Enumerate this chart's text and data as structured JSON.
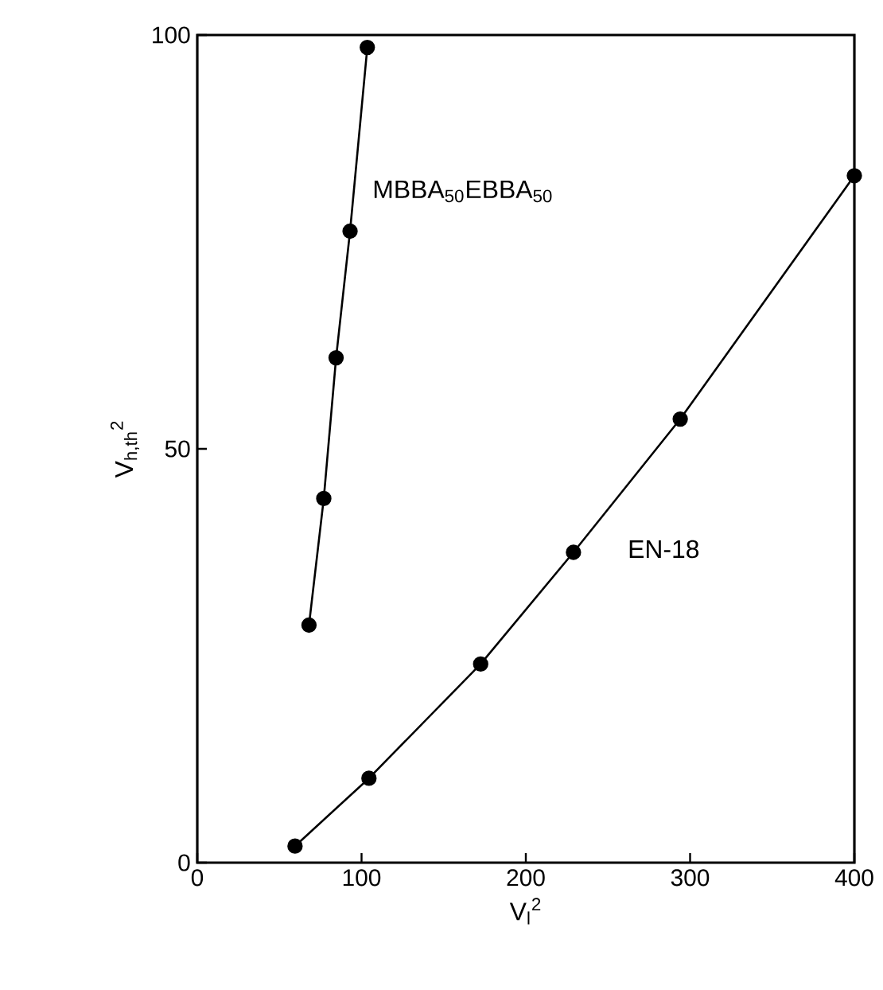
{
  "chart_data": {
    "type": "line",
    "xlabel": "V$_{l}$$^{2}$",
    "ylabel": "V$_{h,th}$$^{2}$",
    "xlim": [
      0,
      400
    ],
    "ylim": [
      0,
      100
    ],
    "xticks": [
      0,
      100,
      200,
      300,
      400
    ],
    "yticks": [
      0,
      50,
      100
    ],
    "marker": "circle",
    "line_style": "solid",
    "series": [
      {
        "name": "MBBA$_{50}$EBBA$_{50}$",
        "color": "#000000",
        "x": [
          68,
          77,
          84.5,
          93,
          103.5
        ],
        "values": [
          28.7,
          44,
          61,
          76.3,
          98.5
        ]
      },
      {
        "name": "EN-18",
        "color": "#000000",
        "x": [
          59.5,
          104.5,
          172.5,
          229,
          294,
          400
        ],
        "values": [
          2,
          10.2,
          24,
          37.5,
          53.6,
          83
        ]
      }
    ]
  }
}
